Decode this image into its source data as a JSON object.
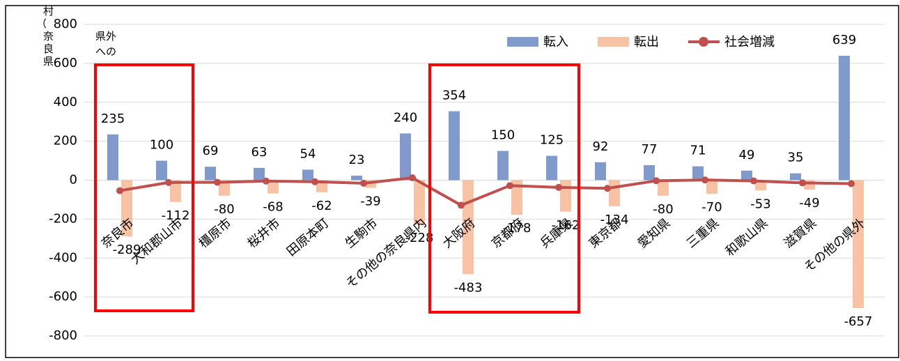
{
  "chart_data": {
    "type": "bar-line",
    "axis_label": "村（奈良県",
    "annotation": "県外への",
    "categories": [
      "奈良市",
      "大和郡山市",
      "橿原市",
      "桜井市",
      "田原本町",
      "生駒市",
      "その他の奈良県内",
      "大阪府",
      "京都府",
      "兵庫県",
      "東京都",
      "愛知県",
      "三重県",
      "和歌山県",
      "滋賀県",
      "その他の県外"
    ],
    "series": [
      {
        "name": "転入",
        "kind": "bar",
        "color": "#7f9acb",
        "values": [
          235,
          100,
          69,
          63,
          54,
          23,
          240,
          354,
          150,
          125,
          92,
          77,
          71,
          49,
          35,
          639
        ]
      },
      {
        "name": "転出",
        "kind": "bar",
        "color": "#f8c3a4",
        "values": [
          -289,
          -112,
          -80,
          -68,
          -62,
          -39,
          -228,
          -483,
          -178,
          -162,
          -134,
          -80,
          -70,
          -53,
          -49,
          -657
        ]
      },
      {
        "name": "社会増減",
        "kind": "line",
        "color": "#c0504d",
        "values": [
          -54,
          -12,
          -11,
          -5,
          -8,
          -16,
          12,
          -129,
          -28,
          -37,
          -42,
          -3,
          1,
          -4,
          -14,
          -18
        ]
      }
    ],
    "ylim": [
      -800,
      800
    ],
    "yticks": [
      -800,
      -600,
      -400,
      -200,
      0,
      200,
      400,
      600,
      800
    ],
    "grid": true
  }
}
